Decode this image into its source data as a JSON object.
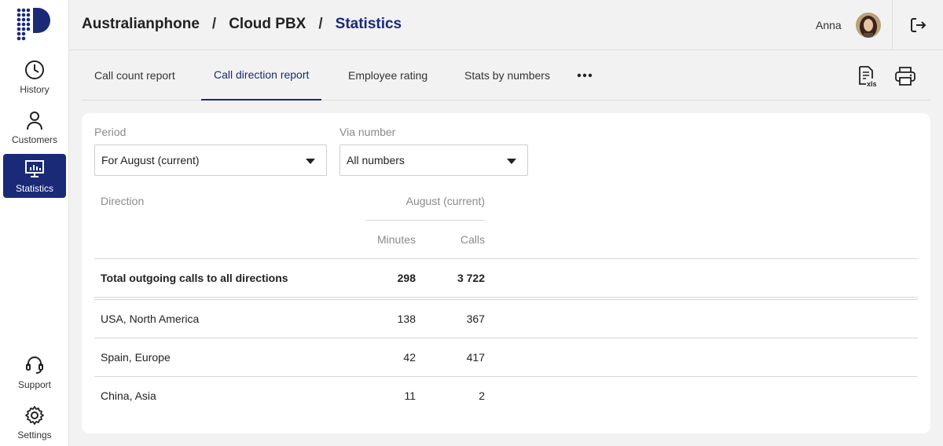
{
  "sidebar": {
    "items": [
      {
        "label": "History",
        "icon": "clock-icon"
      },
      {
        "label": "Customers",
        "icon": "person-icon"
      },
      {
        "label": "Statistics",
        "icon": "monitor-chart-icon",
        "active": true
      },
      {
        "label": "Support",
        "icon": "headset-icon"
      },
      {
        "label": "Settings",
        "icon": "gear-icon"
      }
    ]
  },
  "header": {
    "breadcrumb": [
      "Australianphone",
      "Cloud PBX",
      "Statistics"
    ],
    "separator": "/",
    "user_name": "Anna"
  },
  "tabs": [
    {
      "label": "Call count report"
    },
    {
      "label": "Call direction report",
      "active": true
    },
    {
      "label": "Employee rating"
    },
    {
      "label": "Stats by numbers"
    }
  ],
  "filters": {
    "period_label": "Period",
    "period_value": "For August (current)",
    "via_label": "Via number",
    "via_value": "All numbers"
  },
  "table": {
    "direction_header": "Direction",
    "period_header": "August (current)",
    "minutes_header": "Minutes",
    "calls_header": "Calls",
    "total": {
      "direction": "Total outgoing calls to all directions",
      "minutes": "298",
      "calls": "3 722"
    },
    "rows": [
      {
        "direction": "USA, North America",
        "minutes": "138",
        "calls": "367"
      },
      {
        "direction": "Spain, Europe",
        "minutes": "42",
        "calls": "417"
      },
      {
        "direction": "China, Asia",
        "minutes": "11",
        "calls": "2"
      }
    ]
  },
  "colors": {
    "accent": "#1a2a77",
    "background": "#f2f2f2"
  }
}
